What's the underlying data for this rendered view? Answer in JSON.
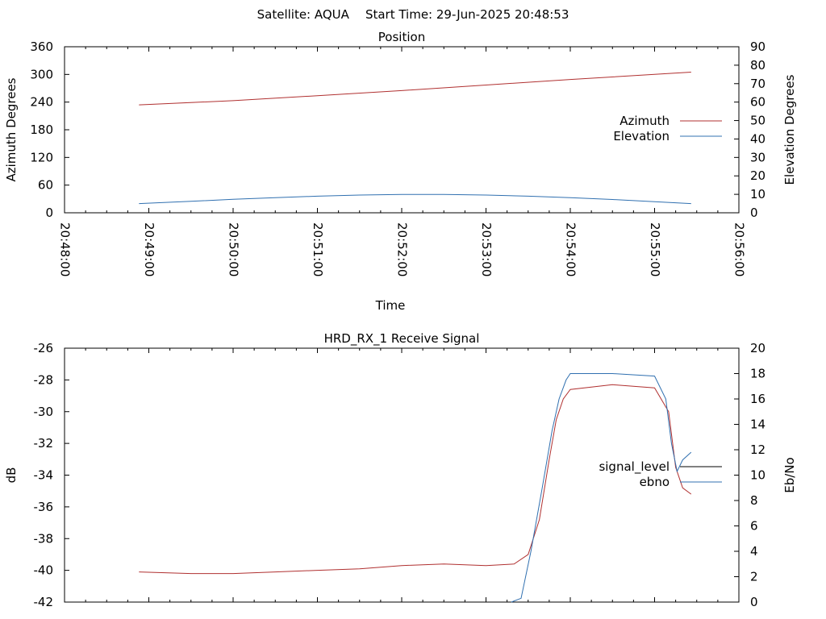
{
  "header": {
    "satellite_label": "Satellite: AQUA",
    "start_time_label": "Start Time: 29-Jun-2025 20:48:53"
  },
  "colors": {
    "azimuth": "#b03030",
    "elevation": "#3070b0",
    "signal_level": "#000000",
    "ebno": "#00a000",
    "axis": "#000000"
  },
  "chart_data": [
    {
      "type": "line",
      "title": "Position",
      "xlabel": "Time",
      "ylabel": "Azimuth Degrees",
      "y2label": "Elevation Degrees",
      "xlim": [
        "20:48:00",
        "20:56:00"
      ],
      "ylim": [
        0,
        360
      ],
      "y2lim": [
        0,
        90
      ],
      "xticks": [
        "20:48:00",
        "20:49:00",
        "20:50:00",
        "20:51:00",
        "20:52:00",
        "20:53:00",
        "20:54:00",
        "20:55:00",
        "20:56:00"
      ],
      "yticks": [
        0,
        60,
        120,
        180,
        240,
        300,
        360
      ],
      "y2ticks": [
        0,
        10,
        20,
        30,
        40,
        50,
        60,
        70,
        80,
        90
      ],
      "legend_position": "right",
      "series": [
        {
          "name": "Azimuth",
          "axis": "y",
          "color": "#b03030",
          "x": [
            "20:48:53",
            "20:50:00",
            "20:51:00",
            "20:52:00",
            "20:53:00",
            "20:54:00",
            "20:55:00",
            "20:55:26"
          ],
          "values": [
            234,
            243,
            254,
            265,
            277,
            289,
            300,
            305
          ]
        },
        {
          "name": "Elevation",
          "axis": "y2",
          "color": "#3070b0",
          "x": [
            "20:48:53",
            "20:49:30",
            "20:50:00",
            "20:50:30",
            "20:51:00",
            "20:51:30",
            "20:52:00",
            "20:52:30",
            "20:53:00",
            "20:53:30",
            "20:54:00",
            "20:54:30",
            "20:55:00",
            "20:55:26"
          ],
          "values": [
            5.0,
            6.2,
            7.3,
            8.2,
            9.0,
            9.6,
            9.9,
            9.9,
            9.6,
            9.0,
            8.2,
            7.2,
            6.0,
            5.0
          ]
        }
      ]
    },
    {
      "type": "line",
      "title": "HRD_RX_1 Receive Signal",
      "xlabel": "",
      "ylabel": "dB",
      "y2label": "Eb/No",
      "xlim": [
        "20:48:00",
        "20:56:00"
      ],
      "ylim": [
        -42,
        -26
      ],
      "y2lim": [
        0,
        20
      ],
      "yticks": [
        -42,
        -40,
        -38,
        -36,
        -34,
        -32,
        -30,
        -28,
        -26
      ],
      "y2ticks": [
        0,
        2,
        4,
        6,
        8,
        10,
        12,
        14,
        16,
        18,
        20
      ],
      "legend_position": "right",
      "series": [
        {
          "name": "signal_level",
          "axis": "y",
          "color": "#b03030",
          "x": [
            "20:48:53",
            "20:49:30",
            "20:50:00",
            "20:50:30",
            "20:51:00",
            "20:51:30",
            "20:52:00",
            "20:52:30",
            "20:53:00",
            "20:53:20",
            "20:53:30",
            "20:53:38",
            "20:53:45",
            "20:53:50",
            "20:53:55",
            "20:54:00",
            "20:54:30",
            "20:55:00",
            "20:55:10",
            "20:55:15",
            "20:55:20",
            "20:55:26"
          ],
          "values": [
            -40.1,
            -40.2,
            -40.2,
            -40.1,
            -40.0,
            -39.9,
            -39.7,
            -39.6,
            -39.7,
            -39.6,
            -39.0,
            -36.8,
            -33.0,
            -30.5,
            -29.2,
            -28.6,
            -28.3,
            -28.5,
            -30.0,
            -33.5,
            -34.8,
            -35.2
          ]
        },
        {
          "name": "ebno",
          "axis": "y2",
          "color": "#3070b0",
          "x": [
            "20:53:18",
            "20:53:25",
            "20:53:32",
            "20:53:40",
            "20:53:47",
            "20:53:52",
            "20:53:57",
            "20:54:00",
            "20:54:30",
            "20:55:00",
            "20:55:08",
            "20:55:12",
            "20:55:16",
            "20:55:20",
            "20:55:26"
          ],
          "values": [
            0.0,
            0.3,
            4.0,
            9.0,
            13.5,
            16.0,
            17.5,
            18.0,
            18.0,
            17.8,
            16.0,
            12.5,
            10.3,
            11.2,
            11.8
          ]
        }
      ]
    }
  ]
}
